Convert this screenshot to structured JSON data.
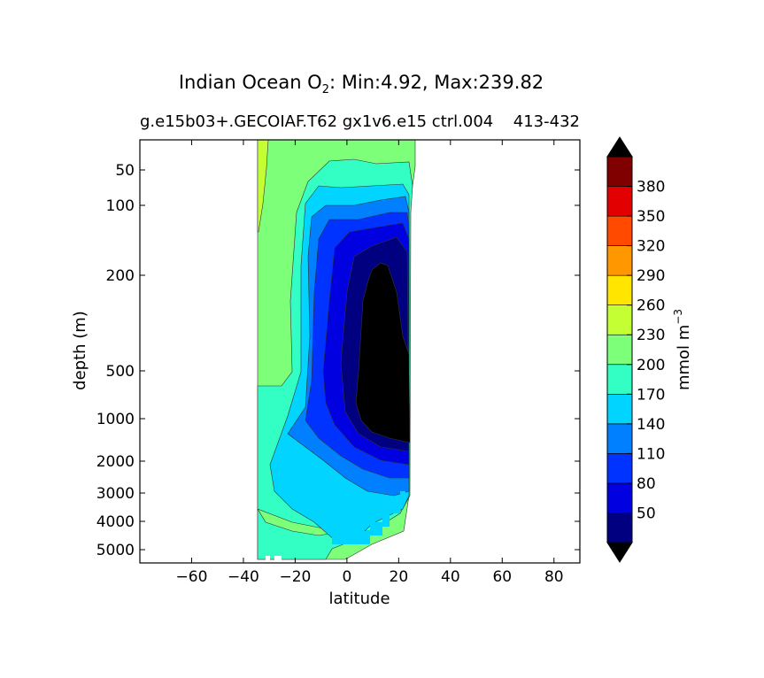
{
  "chart_data": {
    "type": "contour",
    "title_prefix": "Indian Ocean O",
    "title_sub": "2",
    "title_suffix": ": Min:4.92, Max:239.82",
    "subtitle_left": "g.e15b03+.GECOIAF.T62 gx1v6.e15 ctrl.004",
    "subtitle_right": "413-432",
    "xlabel": "latitude",
    "ylabel": "depth (m)",
    "xlim": [
      -80,
      90
    ],
    "xticks": [
      -60,
      -40,
      -20,
      0,
      20,
      40,
      60,
      80
    ],
    "xtick_labels": [
      "−60",
      "−40",
      "−20",
      "0",
      "20",
      "40",
      "60",
      "80"
    ],
    "yticks": [
      50,
      100,
      200,
      500,
      1000,
      2000,
      3000,
      4000,
      5000
    ],
    "ytick_labels": [
      "50",
      "100",
      "200",
      "500",
      "1000",
      "2000",
      "3000",
      "4000",
      "5000"
    ],
    "colorbar": {
      "label": "mmol m",
      "label_sup": "−3",
      "levels": [
        20,
        50,
        80,
        110,
        140,
        170,
        200,
        230,
        260,
        290,
        320,
        350,
        380,
        410
      ],
      "tick_values": [
        50,
        80,
        110,
        140,
        170,
        200,
        230,
        260,
        290,
        320,
        350,
        380
      ],
      "tick_labels": [
        "50",
        "80",
        "110",
        "140",
        "170",
        "200",
        "230",
        "260",
        "290",
        "320",
        "350",
        "380"
      ],
      "colors": [
        "#000080",
        "#0000e0",
        "#0033ff",
        "#0080ff",
        "#00d4ff",
        "#33ffc4",
        "#7dff7a",
        "#c4ff33",
        "#ffe500",
        "#ff9800",
        "#ff4a00",
        "#e30000",
        "#800000"
      ],
      "under_color": "#000000",
      "over_color": "#000000"
    }
  }
}
